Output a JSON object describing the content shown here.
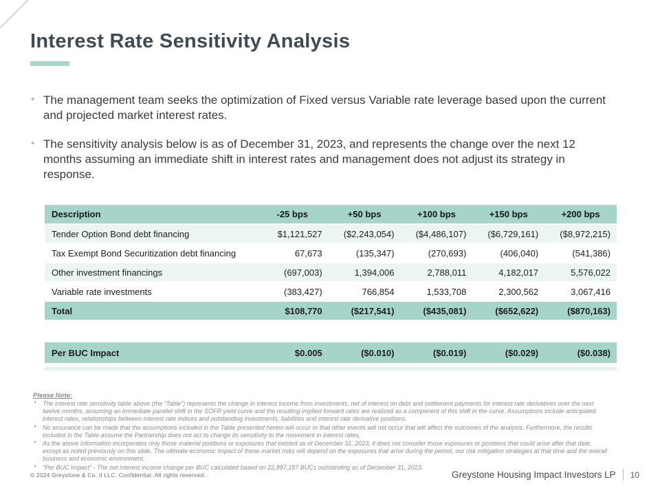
{
  "slide": {
    "title": "Interest Rate Sensitivity Analysis",
    "bullets": [
      "The management team seeks the optimization of Fixed versus Variable rate leverage based upon the current and projected market interest rates.",
      "The sensitivity analysis below is as of December 31, 2023, and represents the change over the next 12 months assuming an immediate shift in interest rates and management does not adjust its strategy in response."
    ],
    "table": {
      "headers": [
        "Description",
        "-25 bps",
        "+50 bps",
        "+100 bps",
        "+150 bps",
        "+200 bps"
      ],
      "rows": [
        {
          "label": "Tender Option Bond debt financing",
          "values": [
            "$1,121,527",
            "($2,243,054)",
            "($4,486,107)",
            "($6,729,161)",
            "($8,972,215)"
          ]
        },
        {
          "label": "Tax Exempt Bond Securitization debt financing",
          "values": [
            "67,673",
            "(135,347)",
            "(270,693)",
            "(406,040)",
            "(541,386)"
          ]
        },
        {
          "label": "Other investment financings",
          "values": [
            "(697,003)",
            "1,394,006",
            "2,788,011",
            "4,182,017",
            "5,576,022"
          ]
        },
        {
          "label": "Variable rate investments",
          "values": [
            "(383,427)",
            "766,854",
            "1,533,708",
            "2,300,562",
            "3,067,416"
          ]
        }
      ],
      "total": {
        "label": "Total",
        "values": [
          "$108,770",
          "($217,541)",
          "($435,081)",
          "($652,622)",
          "($870,163)"
        ]
      },
      "per_buc": {
        "label": "Per BUC Impact",
        "values": [
          "$0.005",
          "($0.010)",
          "($0.019)",
          "($0.029)",
          "($0.038)"
        ]
      }
    },
    "notes": {
      "heading": "Please Note:",
      "items": [
        "The interest rate sensitivity table above (the “Table”) represents the change in interest income from investments, net of interest on debt and settlement payments for interest rate derivatives over the next twelve months, assuming an immediate parallel shift in the SOFR yield curve and the resulting implied forward rates are realized as a component of this shift in the curve. Assumptions include anticipated interest rates, relationships between interest rate indices and outstanding investments, liabilities and interest rate derivative positions.",
        "No assurance can be made that the assumptions included in the Table presented herein will occur or that other events will not occur that will affect the outcomes of the analysis. Furthermore, the results included in the Table assume the Partnership does not act to change its sensitivity to the movement in interest rates.",
        "As the above information incorporates only those material positions or exposures that existed as of December 31, 2023, it does not consider those exposures or positions that could arise after that date, except as noted previously on this slide. The ultimate economic impact of these market risks will depend on the exposures that arise during the period, our risk mitigation strategies at that time and the overall business and economic environment.",
        "“Per BUC Impact” - The net interest income change per BUC calculated based on 22,897,187 BUCs outstanding as of December 31, 2023."
      ]
    },
    "footer": {
      "copyright": "© 2024 Greystone & Co. II LLC. Confidential. All rights reserved.",
      "company": "Greystone Housing Impact Investors LP",
      "page_number": "10"
    },
    "colors": {
      "table_header_teal": "#a7d4c8",
      "row_stripe_mint": "#ebf5f1",
      "accent_bar_teal": "#a9d6ca",
      "title_color": "#3e4b52"
    }
  }
}
